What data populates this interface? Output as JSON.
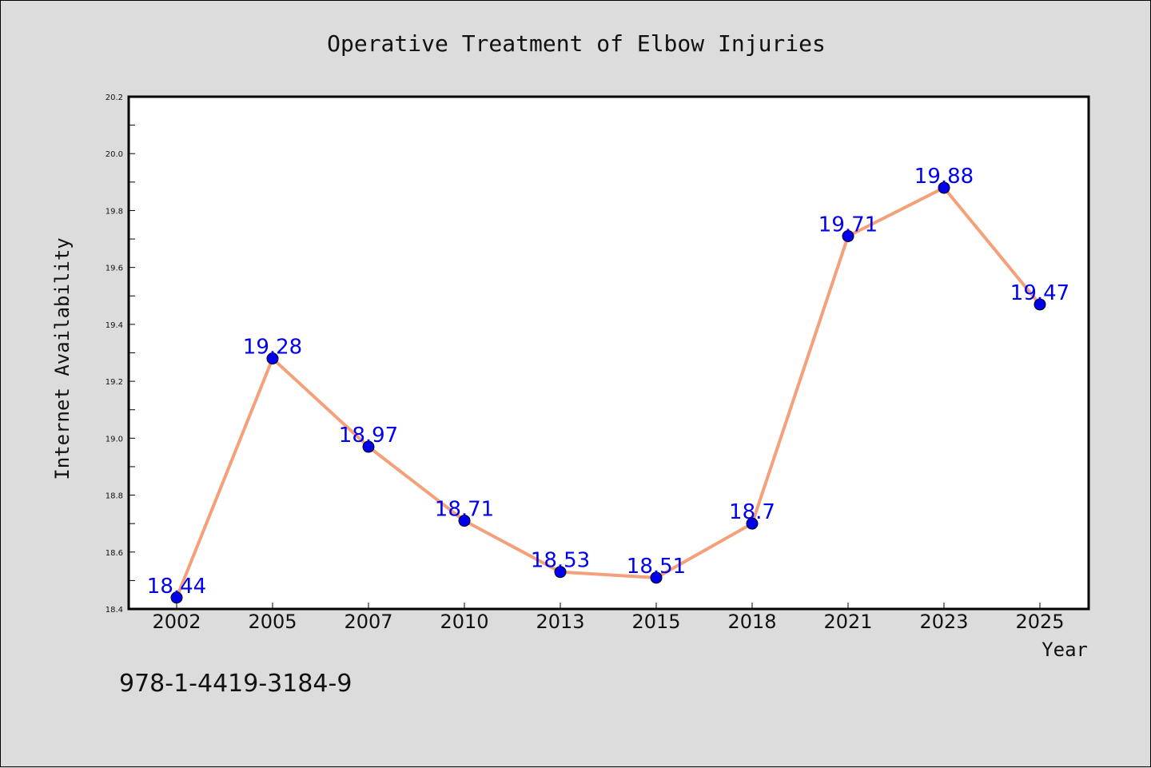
{
  "chart_data": {
    "type": "line",
    "title": "Operative Treatment of Elbow Injuries",
    "xlabel": "Year",
    "ylabel": "Internet Availability",
    "categories": [
      "2002",
      "2005",
      "2007",
      "2010",
      "2013",
      "2015",
      "2018",
      "2021",
      "2023",
      "2025"
    ],
    "values": [
      18.44,
      19.28,
      18.97,
      18.71,
      18.53,
      18.51,
      18.7,
      19.71,
      19.88,
      19.47
    ],
    "data_labels": [
      "18.44",
      "19.28",
      "18.97",
      "18.71",
      "18.53",
      "18.51",
      "18.7",
      "19.71",
      "19.88",
      "19.47"
    ],
    "ylim": [
      18.4,
      20.2
    ],
    "yticks": [
      "18.4",
      "18.6",
      "18.8",
      "19.0",
      "19.2",
      "19.4",
      "19.6",
      "19.8",
      "20.0",
      "20.2"
    ],
    "grid": false,
    "line_color": "#f4a07a",
    "marker_color": "#0000ee",
    "label_color": "#0000ee",
    "background": "#dcdcdc",
    "plot_background": "#ffffff"
  },
  "footer": {
    "isbn": "978-1-4419-3184-9"
  }
}
